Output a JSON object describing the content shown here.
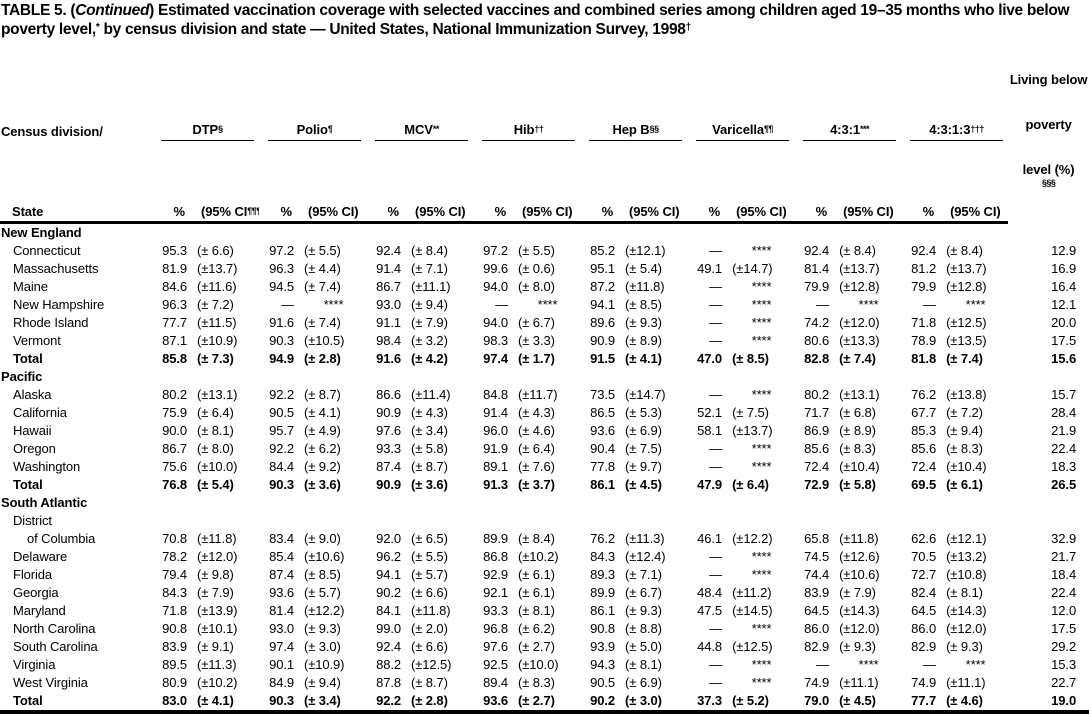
{
  "title": {
    "pre": "TABLE 5. (",
    "continued": "Continued",
    "post": ") Estimated vaccination coverage with selected vaccines and combined series among children aged 19–35 months who live below poverty level,",
    "sup1": "*",
    "mid": " by census division and state — United States, National Immunization Survey, 1998",
    "sup2": "†"
  },
  "table": {
    "state_header_line1": "Census division/",
    "state_header_line2": "State",
    "pct_label": "%",
    "poverty_header": {
      "l1": "Living below",
      "l2": "poverty",
      "l3": "level (%)",
      "sup": "§§§"
    },
    "columns": [
      {
        "key": "dtp",
        "name": "DTP",
        "sup": "§",
        "ci_pre": "(95% CI",
        "ci_sup": "¶¶¶",
        "ci_post": ")"
      },
      {
        "key": "polio",
        "name": "Polio",
        "sup": "¶",
        "ci_pre": "(95% CI)",
        "ci_sup": "",
        "ci_post": ""
      },
      {
        "key": "mcv",
        "name": "MCV",
        "sup": "**",
        "ci_pre": "(95% CI)",
        "ci_sup": "",
        "ci_post": ""
      },
      {
        "key": "hib",
        "name": "Hib",
        "sup": "††",
        "ci_pre": "(95% CI)",
        "ci_sup": "",
        "ci_post": ""
      },
      {
        "key": "hepb",
        "name": "Hep B",
        "sup": "§§",
        "ci_pre": "(95% CI)",
        "ci_sup": "",
        "ci_post": ""
      },
      {
        "key": "varicella",
        "name": "Varicella",
        "sup": "¶¶",
        "ci_pre": "(95% CI)",
        "ci_sup": "",
        "ci_post": ""
      },
      {
        "key": "431",
        "name": "4:3:1",
        "sup": "***",
        "ci_pre": "(95% CI)",
        "ci_sup": "",
        "ci_post": ""
      },
      {
        "key": "4313",
        "name": "4:3:1:3",
        "sup": "†††",
        "ci_pre": "(95% CI)",
        "ci_sup": "",
        "ci_post": ""
      }
    ],
    "rows": [
      {
        "label": "New England",
        "type": "section"
      },
      {
        "label": "Connecticut",
        "type": "data",
        "cells": [
          [
            "95.3",
            "(± 6.6)"
          ],
          [
            "97.2",
            "(± 5.5)"
          ],
          [
            "92.4",
            "(± 8.4)"
          ],
          [
            "97.2",
            "(± 5.5)"
          ],
          [
            "85.2",
            "(±12.1)"
          ],
          [
            "—",
            "****"
          ],
          [
            "92.4",
            "(± 8.4)"
          ],
          [
            "92.4",
            "(± 8.4)"
          ]
        ],
        "poverty": "12.9"
      },
      {
        "label": "Massachusetts",
        "type": "data",
        "cells": [
          [
            "81.9",
            "(±13.7)"
          ],
          [
            "96.3",
            "(± 4.4)"
          ],
          [
            "91.4",
            "(± 7.1)"
          ],
          [
            "99.6",
            "(± 0.6)"
          ],
          [
            "95.1",
            "(± 5.4)"
          ],
          [
            "49.1",
            "(±14.7)"
          ],
          [
            "81.4",
            "(±13.7)"
          ],
          [
            "81.2",
            "(±13.7)"
          ]
        ],
        "poverty": "16.9"
      },
      {
        "label": "Maine",
        "type": "data",
        "cells": [
          [
            "84.6",
            "(±11.6)"
          ],
          [
            "94.5",
            "(± 7.4)"
          ],
          [
            "86.7",
            "(±11.1)"
          ],
          [
            "94.0",
            "(± 8.0)"
          ],
          [
            "87.2",
            "(±11.8)"
          ],
          [
            "—",
            "****"
          ],
          [
            "79.9",
            "(±12.8)"
          ],
          [
            "79.9",
            "(±12.8)"
          ]
        ],
        "poverty": "16.4"
      },
      {
        "label": "New Hampshire",
        "type": "data",
        "cells": [
          [
            "96.3",
            "(± 7.2)"
          ],
          [
            "—",
            "****"
          ],
          [
            "93.0",
            "(± 9.4)"
          ],
          [
            "—",
            "****"
          ],
          [
            "94.1",
            "(± 8.5)"
          ],
          [
            "—",
            "****"
          ],
          [
            "—",
            "****"
          ],
          [
            "—",
            "****"
          ]
        ],
        "poverty": "12.1"
      },
      {
        "label": "Rhode Island",
        "type": "data",
        "cells": [
          [
            "77.7",
            "(±11.5)"
          ],
          [
            "91.6",
            "(± 7.4)"
          ],
          [
            "91.1",
            "(± 7.9)"
          ],
          [
            "94.0",
            "(± 6.7)"
          ],
          [
            "89.6",
            "(± 9.3)"
          ],
          [
            "—",
            "****"
          ],
          [
            "74.2",
            "(±12.0)"
          ],
          [
            "71.8",
            "(±12.5)"
          ]
        ],
        "poverty": "20.0"
      },
      {
        "label": "Vermont",
        "type": "data",
        "cells": [
          [
            "87.1",
            "(±10.9)"
          ],
          [
            "90.3",
            "(±10.5)"
          ],
          [
            "98.4",
            "(± 3.2)"
          ],
          [
            "98.3",
            "(± 3.3)"
          ],
          [
            "90.9",
            "(± 8.9)"
          ],
          [
            "—",
            "****"
          ],
          [
            "80.6",
            "(±13.3)"
          ],
          [
            "78.9",
            "(±13.5)"
          ]
        ],
        "poverty": "17.5"
      },
      {
        "label": "Total",
        "type": "total",
        "cells": [
          [
            "85.8",
            "(± 7.3)"
          ],
          [
            "94.9",
            "(± 2.8)"
          ],
          [
            "91.6",
            "(± 4.2)"
          ],
          [
            "97.4",
            "(± 1.7)"
          ],
          [
            "91.5",
            "(± 4.1)"
          ],
          [
            "47.0",
            "(± 8.5)"
          ],
          [
            "82.8",
            "(± 7.4)"
          ],
          [
            "81.8",
            "(± 7.4)"
          ]
        ],
        "poverty": "15.6"
      },
      {
        "label": "Pacific",
        "type": "section"
      },
      {
        "label": "Alaska",
        "type": "data",
        "cells": [
          [
            "80.2",
            "(±13.1)"
          ],
          [
            "92.2",
            "(± 8.7)"
          ],
          [
            "86.6",
            "(±11.4)"
          ],
          [
            "84.8",
            "(±11.7)"
          ],
          [
            "73.5",
            "(±14.7)"
          ],
          [
            "—",
            "****"
          ],
          [
            "80.2",
            "(±13.1)"
          ],
          [
            "76.2",
            "(±13.8)"
          ]
        ],
        "poverty": "15.7"
      },
      {
        "label": "California",
        "type": "data",
        "cells": [
          [
            "75.9",
            "(± 6.4)"
          ],
          [
            "90.5",
            "(± 4.1)"
          ],
          [
            "90.9",
            "(± 4.3)"
          ],
          [
            "91.4",
            "(± 4.3)"
          ],
          [
            "86.5",
            "(± 5.3)"
          ],
          [
            "52.1",
            "(± 7.5)"
          ],
          [
            "71.7",
            "(± 6.8)"
          ],
          [
            "67.7",
            "(± 7.2)"
          ]
        ],
        "poverty": "28.4"
      },
      {
        "label": "Hawaii",
        "type": "data",
        "cells": [
          [
            "90.0",
            "(± 8.1)"
          ],
          [
            "95.7",
            "(± 4.9)"
          ],
          [
            "97.6",
            "(± 3.4)"
          ],
          [
            "96.0",
            "(± 4.6)"
          ],
          [
            "93.6",
            "(± 6.9)"
          ],
          [
            "58.1",
            "(±13.7)"
          ],
          [
            "86.9",
            "(± 8.9)"
          ],
          [
            "85.3",
            "(± 9.4)"
          ]
        ],
        "poverty": "21.9"
      },
      {
        "label": "Oregon",
        "type": "data",
        "cells": [
          [
            "86.7",
            "(± 8.0)"
          ],
          [
            "92.2",
            "(± 6.2)"
          ],
          [
            "93.3",
            "(± 5.8)"
          ],
          [
            "91.9",
            "(± 6.4)"
          ],
          [
            "90.4",
            "(± 7.5)"
          ],
          [
            "—",
            "****"
          ],
          [
            "85.6",
            "(± 8.3)"
          ],
          [
            "85.6",
            "(± 8.3)"
          ]
        ],
        "poverty": "22.4"
      },
      {
        "label": "Washington",
        "type": "data",
        "cells": [
          [
            "75.6",
            "(±10.0)"
          ],
          [
            "84.4",
            "(± 9.2)"
          ],
          [
            "87.4",
            "(± 8.7)"
          ],
          [
            "89.1",
            "(± 7.6)"
          ],
          [
            "77.8",
            "(± 9.7)"
          ],
          [
            "—",
            "****"
          ],
          [
            "72.4",
            "(±10.4)"
          ],
          [
            "72.4",
            "(±10.4)"
          ]
        ],
        "poverty": "18.3"
      },
      {
        "label": "Total",
        "type": "total",
        "cells": [
          [
            "76.8",
            "(± 5.4)"
          ],
          [
            "90.3",
            "(± 3.6)"
          ],
          [
            "90.9",
            "(± 3.6)"
          ],
          [
            "91.3",
            "(± 3.7)"
          ],
          [
            "86.1",
            "(± 4.5)"
          ],
          [
            "47.9",
            "(± 6.4)"
          ],
          [
            "72.9",
            "(± 5.8)"
          ],
          [
            "69.5",
            "(± 6.1)"
          ]
        ],
        "poverty": "26.5"
      },
      {
        "label": "South Atlantic",
        "type": "section"
      },
      {
        "label": "District",
        "type": "cont"
      },
      {
        "label": "of Columbia",
        "type": "data",
        "indent": 2,
        "cells": [
          [
            "70.8",
            "(±11.8)"
          ],
          [
            "83.4",
            "(± 9.0)"
          ],
          [
            "92.0",
            "(± 6.5)"
          ],
          [
            "89.9",
            "(± 8.4)"
          ],
          [
            "76.2",
            "(±11.3)"
          ],
          [
            "46.1",
            "(±12.2)"
          ],
          [
            "65.8",
            "(±11.8)"
          ],
          [
            "62.6",
            "(±12.1)"
          ]
        ],
        "poverty": "32.9"
      },
      {
        "label": "Delaware",
        "type": "data",
        "cells": [
          [
            "78.2",
            "(±12.0)"
          ],
          [
            "85.4",
            "(±10.6)"
          ],
          [
            "96.2",
            "(± 5.5)"
          ],
          [
            "86.8",
            "(±10.2)"
          ],
          [
            "84.3",
            "(±12.4)"
          ],
          [
            "—",
            "****"
          ],
          [
            "74.5",
            "(±12.6)"
          ],
          [
            "70.5",
            "(±13.2)"
          ]
        ],
        "poverty": "21.7"
      },
      {
        "label": "Florida",
        "type": "data",
        "cells": [
          [
            "79.4",
            "(± 9.8)"
          ],
          [
            "87.4",
            "(± 8.5)"
          ],
          [
            "94.1",
            "(± 5.7)"
          ],
          [
            "92.9",
            "(± 6.1)"
          ],
          [
            "89.3",
            "(± 7.1)"
          ],
          [
            "—",
            "****"
          ],
          [
            "74.4",
            "(±10.6)"
          ],
          [
            "72.7",
            "(±10.8)"
          ]
        ],
        "poverty": "18.4"
      },
      {
        "label": "Georgia",
        "type": "data",
        "cells": [
          [
            "84.3",
            "(± 7.9)"
          ],
          [
            "93.6",
            "(± 5.7)"
          ],
          [
            "90.2",
            "(± 6.6)"
          ],
          [
            "92.1",
            "(± 6.1)"
          ],
          [
            "89.9",
            "(± 6.7)"
          ],
          [
            "48.4",
            "(±11.2)"
          ],
          [
            "83.9",
            "(± 7.9)"
          ],
          [
            "82.4",
            "(± 8.1)"
          ]
        ],
        "poverty": "22.4"
      },
      {
        "label": "Maryland",
        "type": "data",
        "cells": [
          [
            "71.8",
            "(±13.9)"
          ],
          [
            "81.4",
            "(±12.2)"
          ],
          [
            "84.1",
            "(±11.8)"
          ],
          [
            "93.3",
            "(± 8.1)"
          ],
          [
            "86.1",
            "(± 9.3)"
          ],
          [
            "47.5",
            "(±14.5)"
          ],
          [
            "64.5",
            "(±14.3)"
          ],
          [
            "64.5",
            "(±14.3)"
          ]
        ],
        "poverty": "12.0"
      },
      {
        "label": "North Carolina",
        "type": "data",
        "cells": [
          [
            "90.8",
            "(±10.1)"
          ],
          [
            "93.0",
            "(± 9.3)"
          ],
          [
            "99.0",
            "(± 2.0)"
          ],
          [
            "96.8",
            "(± 6.2)"
          ],
          [
            "90.8",
            "(± 8.8)"
          ],
          [
            "—",
            "****"
          ],
          [
            "86.0",
            "(±12.0)"
          ],
          [
            "86.0",
            "(±12.0)"
          ]
        ],
        "poverty": "17.5"
      },
      {
        "label": "South Carolina",
        "type": "data",
        "cells": [
          [
            "83.9",
            "(± 9.1)"
          ],
          [
            "97.4",
            "(± 3.0)"
          ],
          [
            "92.4",
            "(± 6.6)"
          ],
          [
            "97.6",
            "(± 2.7)"
          ],
          [
            "93.9",
            "(± 5.0)"
          ],
          [
            "44.8",
            "(±12.5)"
          ],
          [
            "82.9",
            "(± 9.3)"
          ],
          [
            "82.9",
            "(± 9.3)"
          ]
        ],
        "poverty": "29.2"
      },
      {
        "label": "Virginia",
        "type": "data",
        "cells": [
          [
            "89.5",
            "(±11.3)"
          ],
          [
            "90.1",
            "(±10.9)"
          ],
          [
            "88.2",
            "(±12.5)"
          ],
          [
            "92.5",
            "(±10.0)"
          ],
          [
            "94.3",
            "(± 8.1)"
          ],
          [
            "—",
            "****"
          ],
          [
            "—",
            "****"
          ],
          [
            "—",
            "****"
          ]
        ],
        "poverty": "15.3"
      },
      {
        "label": "West Virginia",
        "type": "data",
        "cells": [
          [
            "80.9",
            "(±10.2)"
          ],
          [
            "84.9",
            "(± 9.4)"
          ],
          [
            "87.8",
            "(± 8.7)"
          ],
          [
            "89.4",
            "(± 8.3)"
          ],
          [
            "90.5",
            "(± 6.9)"
          ],
          [
            "—",
            "****"
          ],
          [
            "74.9",
            "(±11.1)"
          ],
          [
            "74.9",
            "(±11.1)"
          ]
        ],
        "poverty": "22.7"
      },
      {
        "label": "Total",
        "type": "total",
        "cells": [
          [
            "83.0",
            "(± 4.1)"
          ],
          [
            "90.3",
            "(± 3.4)"
          ],
          [
            "92.2",
            "(± 2.8)"
          ],
          [
            "93.6",
            "(± 2.7)"
          ],
          [
            "90.2",
            "(± 3.0)"
          ],
          [
            "37.3",
            "(± 5.2)"
          ],
          [
            "79.0",
            "(± 4.5)"
          ],
          [
            "77.7",
            "(± 4.6)"
          ]
        ],
        "poverty": "19.0"
      }
    ]
  }
}
